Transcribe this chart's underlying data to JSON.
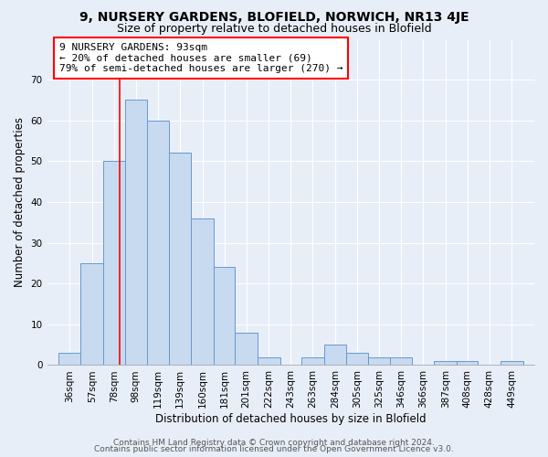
{
  "title1": "9, NURSERY GARDENS, BLOFIELD, NORWICH, NR13 4JE",
  "title2": "Size of property relative to detached houses in Blofield",
  "xlabel": "Distribution of detached houses by size in Blofield",
  "ylabel": "Number of detached properties",
  "bin_labels": [
    "36sqm",
    "57sqm",
    "78sqm",
    "98sqm",
    "119sqm",
    "139sqm",
    "160sqm",
    "181sqm",
    "201sqm",
    "222sqm",
    "243sqm",
    "263sqm",
    "284sqm",
    "305sqm",
    "325sqm",
    "346sqm",
    "366sqm",
    "387sqm",
    "408sqm",
    "428sqm",
    "449sqm"
  ],
  "bar_heights": [
    3,
    25,
    50,
    65,
    60,
    52,
    36,
    24,
    8,
    2,
    0,
    2,
    5,
    3,
    2,
    2,
    0,
    1,
    1,
    0,
    1
  ],
  "bar_color": "#c8daf0",
  "bar_edge_color": "#6699cc",
  "property_line_x_label": "98sqm",
  "annotation_text": "9 NURSERY GARDENS: 93sqm\n← 20% of detached houses are smaller (69)\n79% of semi-detached houses are larger (270) →",
  "annotation_box_color": "white",
  "annotation_box_edge": "red",
  "ylim": [
    0,
    80
  ],
  "yticks": [
    0,
    10,
    20,
    30,
    40,
    50,
    60,
    70,
    80
  ],
  "footer1": "Contains HM Land Registry data © Crown copyright and database right 2024.",
  "footer2": "Contains public sector information licensed under the Open Government Licence v3.0.",
  "bg_color": "#e8eef8",
  "grid_color": "#ffffff",
  "title1_fontsize": 10,
  "title2_fontsize": 9,
  "axis_label_fontsize": 8.5,
  "tick_fontsize": 7.5,
  "annotation_fontsize": 8,
  "footer_fontsize": 6.5
}
